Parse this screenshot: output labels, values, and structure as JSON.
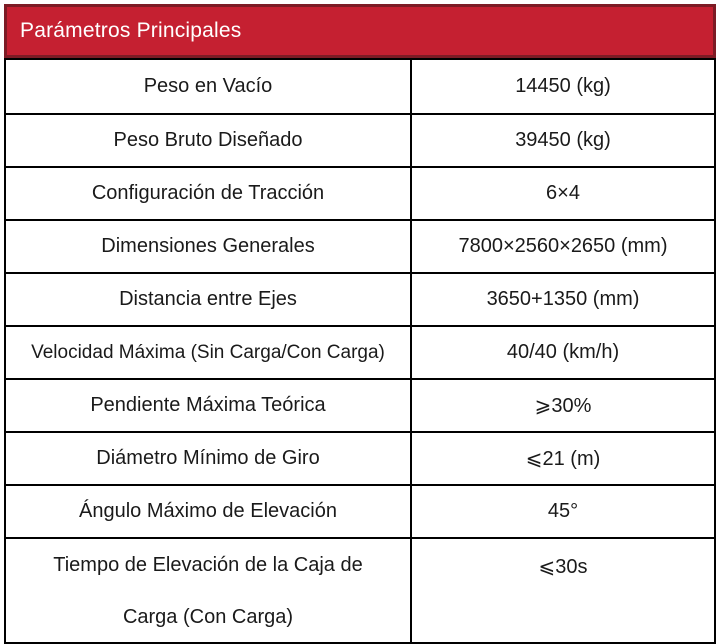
{
  "chart_data": {
    "type": "table",
    "title": "Parámetros Principales",
    "columns": 2,
    "header_merged": true,
    "rows": [
      {
        "label": "Peso en Vacío",
        "value": "14450 (kg)"
      },
      {
        "label": "Peso Bruto Diseñado",
        "value": "39450 (kg)"
      },
      {
        "label": "Configuración de Tracción",
        "value": "6×4"
      },
      {
        "label": "Dimensiones Generales",
        "value": "7800×2560×2650 (mm)"
      },
      {
        "label": "Distancia entre Ejes",
        "value": "3650+1350 (mm)"
      },
      {
        "label": "Velocidad Máxima (Sin Carga/Con Carga)",
        "value": "40/40 (km/h)"
      },
      {
        "label": "Pendiente Máxima Teórica",
        "value": "⩾30%"
      },
      {
        "label": "Diámetro Mínimo de Giro",
        "value": "⩽21 (m)"
      },
      {
        "label": "Ángulo Máximo de Elevación",
        "value": "45°"
      },
      {
        "label": "Tiempo de Elevación de la Caja de Carga (Con Carga)",
        "value": "⩽30s"
      }
    ]
  },
  "colors": {
    "header_bg": "#c52031",
    "header_border": "#7d1b25",
    "header_text": "#ffffff",
    "grid_line": "#000000",
    "body_text": "#1a1a1a",
    "row_bg": "#ffffff"
  }
}
